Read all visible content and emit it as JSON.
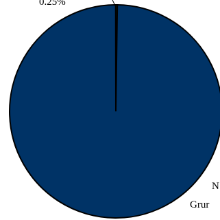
{
  "chart_data": {
    "type": "pie",
    "title": "",
    "slices": [
      {
        "label": "N",
        "label_line2": "Grur",
        "value": 99.75,
        "color": "#003366"
      },
      {
        "label": "",
        "percent_label": "0.25%",
        "value": 0.25,
        "color": "#1a7a1a"
      }
    ],
    "legend": "none"
  }
}
